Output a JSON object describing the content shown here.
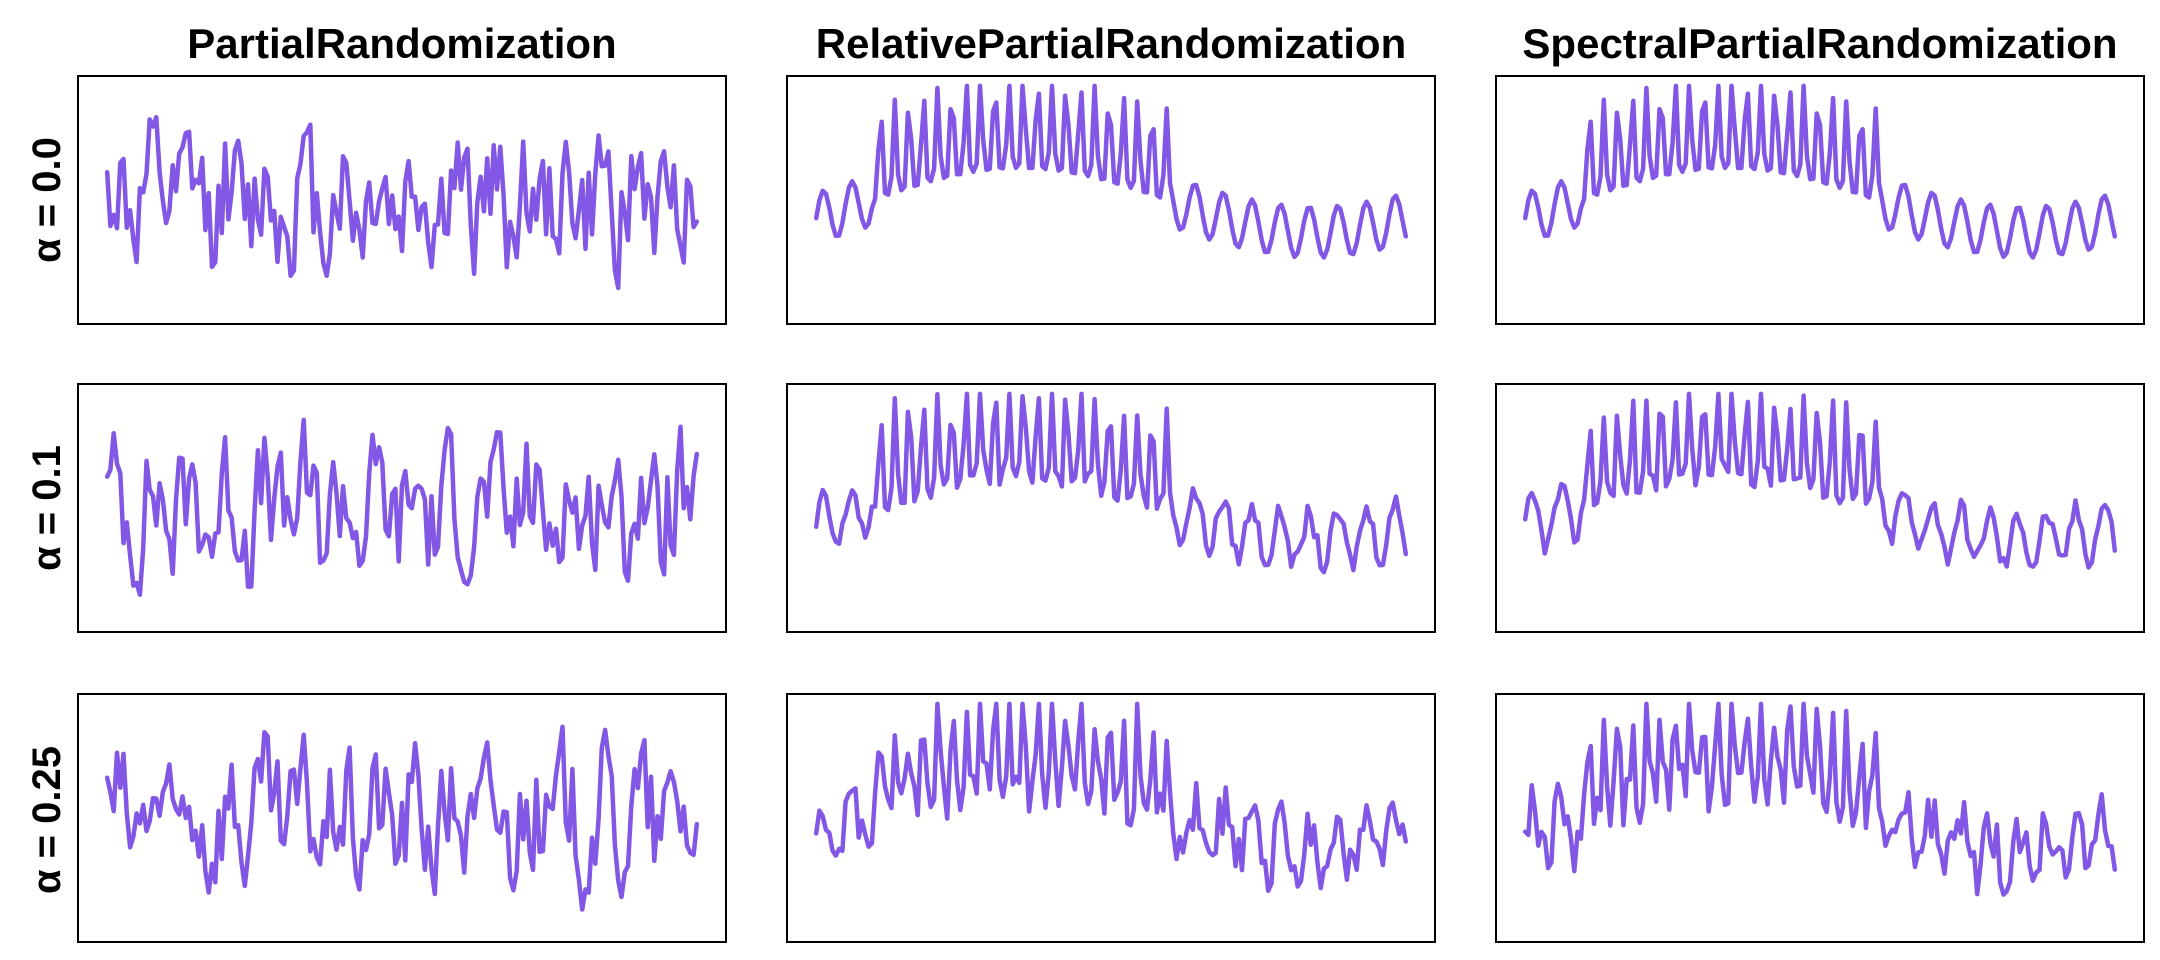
{
  "figure": {
    "line_color": "#8257e5"
  },
  "chart_data": {
    "type": "line",
    "layout": "3x3 grid of panels, no axis ticks",
    "columns": [
      "PartialRandomization",
      "RelativePartialRandomization",
      "SpectralPartialRandomization"
    ],
    "rows": [
      "α = 0.0",
      "α = 0.1",
      "α = 0.25"
    ],
    "x_range": [
      0,
      180
    ],
    "y_range": [
      -3.2,
      3.2
    ],
    "grid": false,
    "legend": "none",
    "panels": [
      {
        "row": "α = 0.0",
        "column": "PartialRandomization",
        "seed": 11,
        "alpha": 0.0,
        "kind": "random"
      },
      {
        "row": "α = 0.0",
        "column": "RelativePartialRandomization",
        "seed": 0,
        "alpha": 0.0,
        "kind": "periodic"
      },
      {
        "row": "α = 0.0",
        "column": "SpectralPartialRandomization",
        "seed": 0,
        "alpha": 0.0,
        "kind": "periodic"
      },
      {
        "row": "α = 0.1",
        "column": "PartialRandomization",
        "seed": 23,
        "alpha": 0.1,
        "kind": "random"
      },
      {
        "row": "α = 0.1",
        "column": "RelativePartialRandomization",
        "seed": 37,
        "alpha": 0.1,
        "kind": "periodic"
      },
      {
        "row": "α = 0.1",
        "column": "SpectralPartialRandomization",
        "seed": 41,
        "alpha": 0.1,
        "kind": "periodic"
      },
      {
        "row": "α = 0.25",
        "column": "PartialRandomization",
        "seed": 53,
        "alpha": 0.25,
        "kind": "random"
      },
      {
        "row": "α = 0.25",
        "column": "RelativePartialRandomization",
        "seed": 67,
        "alpha": 0.25,
        "kind": "periodic"
      },
      {
        "row": "α = 0.25",
        "column": "SpectralPartialRandomization",
        "seed": 79,
        "alpha": 0.25,
        "kind": "periodic"
      }
    ]
  }
}
